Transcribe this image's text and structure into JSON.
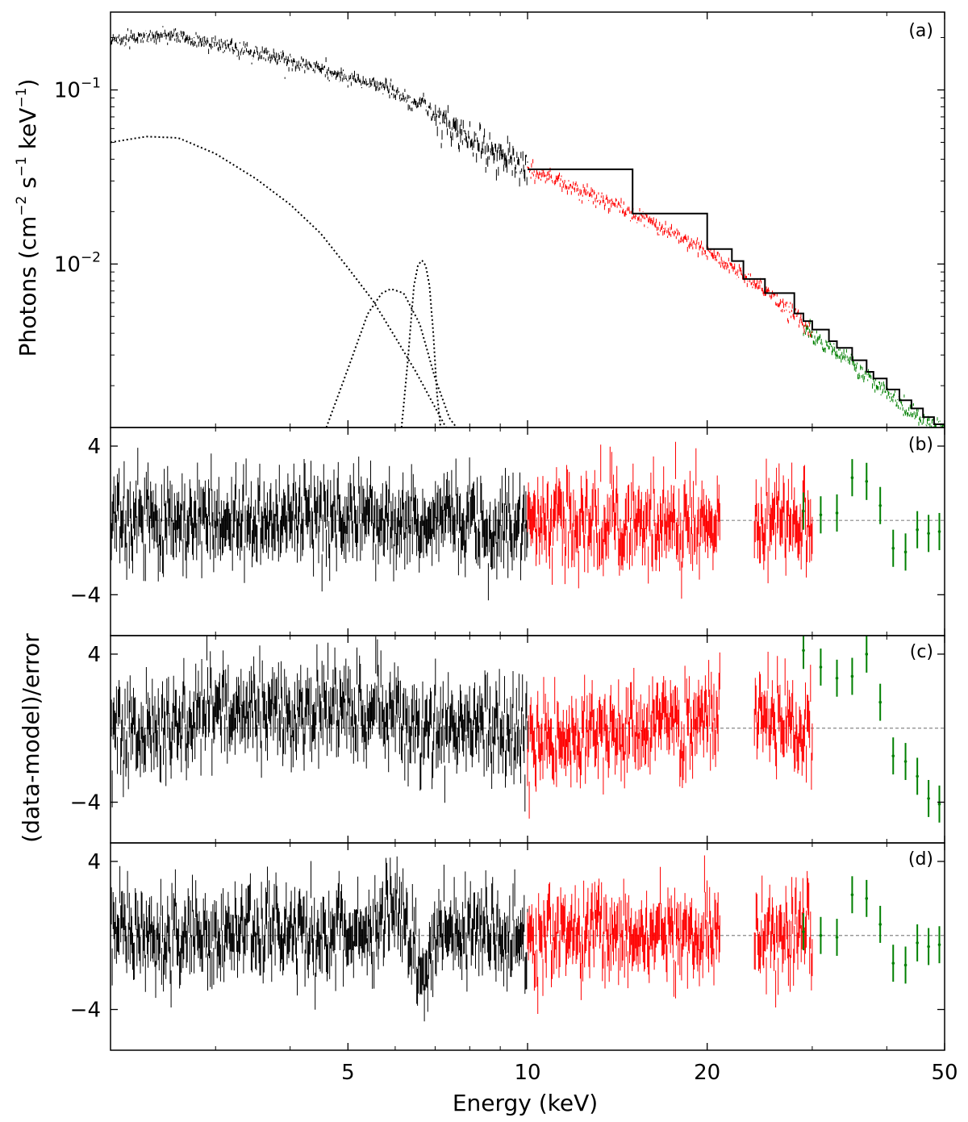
{
  "chart_data": [
    {
      "panel": "(a)",
      "type": "line",
      "xscale": "log",
      "yscale": "log",
      "xlim": [
        2.0,
        50
      ],
      "ylim": [
        0.00115,
        0.28
      ],
      "ylabel": "Photons (cm$^{-2}$ s$^{-1}$ keV$^{-1}$)",
      "yticks": [
        {
          "value": 0.1,
          "base": "10",
          "exp": "−1"
        },
        {
          "value": 0.01,
          "base": "10",
          "exp": "−2"
        }
      ],
      "series": [
        {
          "color": "#000000",
          "style": "data",
          "x": [
            2.0,
            2.5,
            3,
            4,
            5,
            6,
            6.4,
            6.7,
            7,
            8,
            9,
            10
          ],
          "y": [
            0.195,
            0.205,
            0.185,
            0.148,
            0.118,
            0.1,
            0.083,
            0.087,
            0.068,
            0.052,
            0.043,
            0.036
          ]
        },
        {
          "color": "#ff0000",
          "style": "data",
          "x": [
            10,
            12,
            15,
            18,
            21,
            24,
            26,
            28,
            30
          ],
          "y": [
            0.035,
            0.027,
            0.0195,
            0.0145,
            0.0105,
            0.0078,
            0.0063,
            0.0051,
            0.0041
          ]
        },
        {
          "color": "#008000",
          "style": "data",
          "x": [
            29,
            32,
            35,
            38,
            41,
            44,
            47,
            50
          ],
          "y": [
            0.0044,
            0.0033,
            0.0027,
            0.0021,
            0.0017,
            0.0014,
            0.00122,
            0.00115
          ]
        },
        {
          "color": "#000000",
          "style": "model-step",
          "x": [
            10,
            15,
            20,
            22,
            23,
            25,
            28,
            29,
            30,
            32,
            33,
            35,
            37,
            38,
            40,
            42,
            44,
            46,
            48,
            50
          ],
          "y": [
            0.035,
            0.0195,
            0.0122,
            0.0104,
            0.0082,
            0.0068,
            0.0052,
            0.0047,
            0.0042,
            0.0036,
            0.0033,
            0.0028,
            0.0024,
            0.0022,
            0.0019,
            0.00165,
            0.00148,
            0.00132,
            0.0012,
            0.00115
          ]
        },
        {
          "color": "#000000",
          "style": "dotted",
          "x": [
            2.0,
            2.3,
            2.6,
            3,
            3.5,
            4,
            4.5,
            5,
            5.5,
            6,
            6.5,
            7,
            7.3
          ],
          "y": [
            0.05,
            0.054,
            0.053,
            0.043,
            0.031,
            0.022,
            0.015,
            0.0095,
            0.0062,
            0.0038,
            0.0024,
            0.0015,
            0.00115
          ]
        },
        {
          "color": "#000000",
          "style": "dotted",
          "x": [
            4.6,
            5,
            5.4,
            5.7,
            5.9,
            6.2,
            6.6,
            7.0,
            7.4,
            7.6
          ],
          "y": [
            0.00115,
            0.0025,
            0.0052,
            0.0068,
            0.0072,
            0.0068,
            0.0045,
            0.0022,
            0.0013,
            0.00115
          ]
        },
        {
          "color": "#000000",
          "style": "dotted",
          "x": [
            6.15,
            6.3,
            6.45,
            6.55,
            6.65,
            6.75,
            6.85,
            6.95,
            7.05,
            7.15
          ],
          "y": [
            0.00115,
            0.0028,
            0.0075,
            0.0098,
            0.0105,
            0.0098,
            0.0075,
            0.004,
            0.0018,
            0.00115
          ]
        }
      ]
    },
    {
      "panel": "(b)",
      "type": "scatter",
      "xscale": "log",
      "xlim": [
        2.0,
        50
      ],
      "ylim": [
        -6.2,
        5.0
      ],
      "yticks": [
        4,
        -4
      ],
      "segments": [
        {
          "color": "#000000",
          "x_range": [
            2.0,
            10
          ],
          "residual_scale": 1.1
        },
        {
          "color": "#ff0000",
          "x_range": [
            10,
            21
          ],
          "residual_scale": 1.1
        },
        {
          "color": "#ff0000",
          "x_range": [
            24,
            30
          ],
          "residual_scale": 1.1
        }
      ],
      "green_points": {
        "x": [
          29,
          31,
          33,
          35,
          37,
          39,
          41,
          43,
          45,
          47,
          49
        ],
        "y": [
          0.5,
          0.3,
          0.4,
          2.3,
          2.1,
          0.8,
          -1.5,
          -1.7,
          -0.5,
          -0.7,
          -0.6
        ]
      }
    },
    {
      "panel": "(c)",
      "type": "scatter",
      "xscale": "log",
      "xlim": [
        2.0,
        50
      ],
      "ylim": [
        -6.2,
        5.0
      ],
      "yticks": [
        4,
        -4
      ],
      "ylabel": "(data-model)/error",
      "segments": [
        {
          "color": "#000000",
          "x_range": [
            2.0,
            10
          ],
          "residual_scale": 1.1
        },
        {
          "color": "#ff0000",
          "x_range": [
            10,
            21
          ],
          "residual_scale": 1.1
        },
        {
          "color": "#ff0000",
          "x_range": [
            24,
            30
          ],
          "residual_scale": 1.1
        }
      ],
      "green_points": {
        "x": [
          29,
          31,
          33,
          35,
          37,
          39,
          41,
          43,
          45,
          47,
          49
        ],
        "y": [
          4.2,
          3.3,
          2.7,
          2.8,
          4.0,
          1.4,
          -1.5,
          -1.8,
          -2.6,
          -3.8,
          -4.1
        ]
      }
    },
    {
      "panel": "(d)",
      "type": "scatter",
      "xscale": "log",
      "xlim": [
        2.0,
        50
      ],
      "ylim": [
        -6.2,
        5.0
      ],
      "yticks": [
        4,
        -4
      ],
      "segments": [
        {
          "color": "#000000",
          "x_range": [
            2.0,
            10
          ],
          "residual_scale": 1.1
        },
        {
          "color": "#ff0000",
          "x_range": [
            10,
            21
          ],
          "residual_scale": 1.1
        },
        {
          "color": "#ff0000",
          "x_range": [
            24,
            30
          ],
          "residual_scale": 1.1
        }
      ],
      "features": [
        {
          "x": 6.0,
          "y": 1.8
        },
        {
          "x": 6.7,
          "y": -2.5
        }
      ],
      "green_points": {
        "x": [
          29,
          31,
          33,
          35,
          37,
          39,
          41,
          43,
          45,
          47,
          49
        ],
        "y": [
          0.2,
          0.0,
          -0.1,
          2.2,
          2.0,
          0.6,
          -1.5,
          -1.6,
          -0.4,
          -0.6,
          -0.5
        ]
      }
    }
  ],
  "x_axis": {
    "label": "Energy (keV)",
    "ticks": [
      {
        "value": 5,
        "label": "5"
      },
      {
        "value": 10,
        "label": "10"
      },
      {
        "value": 20,
        "label": "20"
      },
      {
        "value": 50,
        "label": "50"
      }
    ]
  },
  "panel_labels": [
    "(a)",
    "(b)",
    "(c)",
    "(d)"
  ],
  "colors": {
    "xmm_data": "#000000",
    "nustar_fpm": "#ff0000",
    "swift_bat": "#008000",
    "zero_line": "#888888"
  }
}
